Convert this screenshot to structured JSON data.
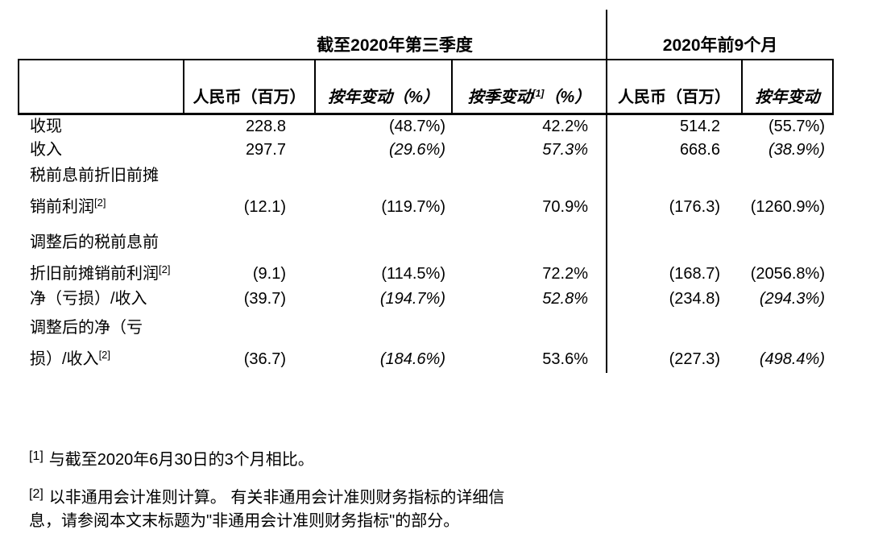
{
  "page": {
    "background": "#ffffff",
    "text_color": "#000000",
    "border_color": "#000000"
  },
  "table": {
    "group_headers": [
      {
        "label": "截至2020年第三季度",
        "span": 3
      },
      {
        "label": "2020年前9个月",
        "span": 2
      }
    ],
    "column_headers": [
      {
        "label": "人民币（百万）",
        "sup": "",
        "suffix": "",
        "italic": false
      },
      {
        "label": "按年变动（%）",
        "sup": "",
        "suffix": "",
        "italic": true
      },
      {
        "label": "按季变动",
        "sup": "[1]",
        "suffix": "（%）",
        "italic": true
      },
      {
        "label": "人民币（百万）",
        "sup": "",
        "suffix": "",
        "italic": false
      },
      {
        "label": "按年变动",
        "sup": "",
        "suffix": "",
        "italic": true
      }
    ],
    "rows": [
      {
        "label_lines": [
          "收现"
        ],
        "label_sup": "",
        "values": [
          "228.8",
          "(48.7%)",
          "42.2%",
          "514.2",
          "(55.7%)"
        ],
        "italics": [
          false,
          false,
          false,
          false,
          false
        ]
      },
      {
        "label_lines": [
          "收入"
        ],
        "label_sup": "",
        "values": [
          "297.7",
          "(29.6%)",
          "57.3%",
          "668.6",
          "(38.9%)"
        ],
        "italics": [
          false,
          true,
          true,
          false,
          true
        ]
      },
      {
        "label_lines": [
          "税前息前折旧前摊",
          "销前利润"
        ],
        "label_sup": "[2]",
        "values": [
          "(12.1)",
          "(119.7%)",
          "70.9%",
          "(176.3)",
          "(1260.9%)"
        ],
        "italics": [
          false,
          false,
          false,
          false,
          false
        ]
      },
      {
        "label_lines": [
          "调整后的税前息前",
          "折旧前摊销前利润"
        ],
        "label_sup": "[2]",
        "values": [
          "(9.1)",
          "(114.5%)",
          "72.2%",
          "(168.7)",
          "(2056.8%)"
        ],
        "italics": [
          false,
          false,
          false,
          false,
          false
        ]
      },
      {
        "label_lines": [
          "净（亏损）/收入"
        ],
        "label_sup": "",
        "values": [
          "(39.7)",
          "(194.7%)",
          "52.8%",
          "(234.8)",
          "(294.3%)"
        ],
        "italics": [
          false,
          true,
          true,
          false,
          true
        ]
      },
      {
        "label_lines": [
          "调整后的净（亏",
          "损）/收入"
        ],
        "label_sup": "[2]",
        "values": [
          "(36.7)",
          "(184.6%)",
          "53.6%",
          "(227.3)",
          "(498.4%)"
        ],
        "italics": [
          false,
          true,
          false,
          false,
          true
        ]
      }
    ]
  },
  "footnotes": [
    {
      "marker": "[1]",
      "lines": [
        "与截至2020年6月30日的3个月相比。"
      ]
    },
    {
      "marker": "[2]",
      "lines": [
        "以非通用会计准则计算。 有关非通用会计准则财务指标的详细信",
        "息，请参阅本文末标题为\"非通用会计准则财务指标\"的部分。"
      ]
    }
  ]
}
